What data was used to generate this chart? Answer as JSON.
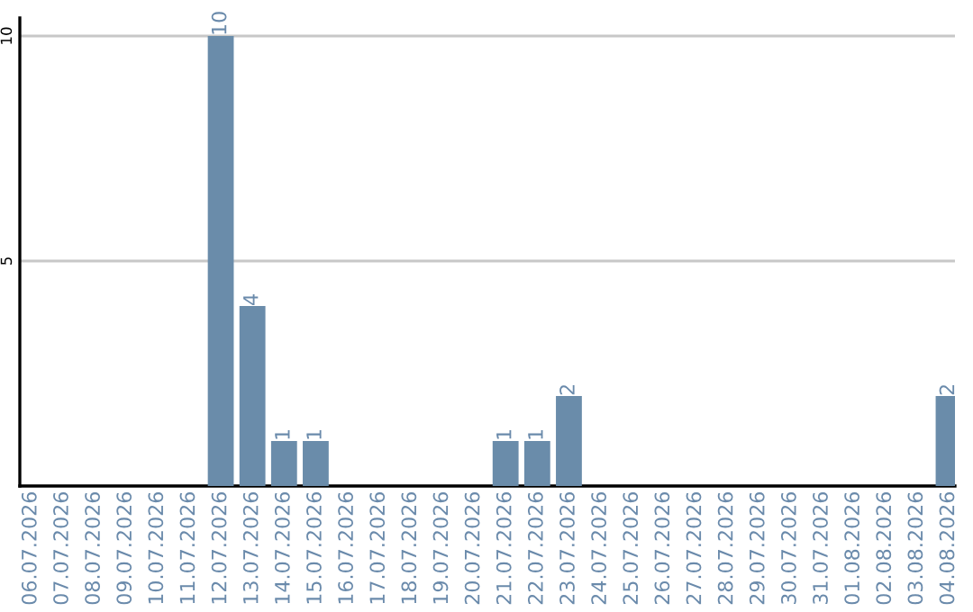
{
  "chart_data": {
    "type": "bar",
    "categories": [
      "06.07.2026",
      "07.07.2026",
      "08.07.2026",
      "09.07.2026",
      "10.07.2026",
      "11.07.2026",
      "12.07.2026",
      "13.07.2026",
      "14.07.2026",
      "15.07.2026",
      "16.07.2026",
      "17.07.2026",
      "18.07.2026",
      "19.07.2026",
      "20.07.2026",
      "21.07.2026",
      "22.07.2026",
      "23.07.2026",
      "24.07.2026",
      "25.07.2026",
      "26.07.2026",
      "27.07.2026",
      "28.07.2026",
      "29.07.2026",
      "30.07.2026",
      "31.07.2026",
      "01.08.2026",
      "02.08.2026",
      "03.08.2026",
      "04.08.2026"
    ],
    "values": [
      0,
      0,
      0,
      0,
      0,
      0,
      10,
      4,
      1,
      1,
      0,
      0,
      0,
      0,
      0,
      1,
      1,
      2,
      0,
      0,
      0,
      0,
      0,
      0,
      0,
      0,
      0,
      0,
      0,
      2
    ],
    "value_labels": [
      null,
      null,
      null,
      null,
      null,
      null,
      "10",
      "4",
      "1",
      "1",
      null,
      null,
      null,
      null,
      null,
      "1",
      "1",
      "2",
      null,
      null,
      null,
      null,
      null,
      null,
      null,
      null,
      null,
      null,
      null,
      "2"
    ],
    "color": "#6a8caa",
    "ylim": [
      0,
      10.4
    ],
    "yticks": [
      5,
      10
    ],
    "grid": "y",
    "legend": false
  }
}
